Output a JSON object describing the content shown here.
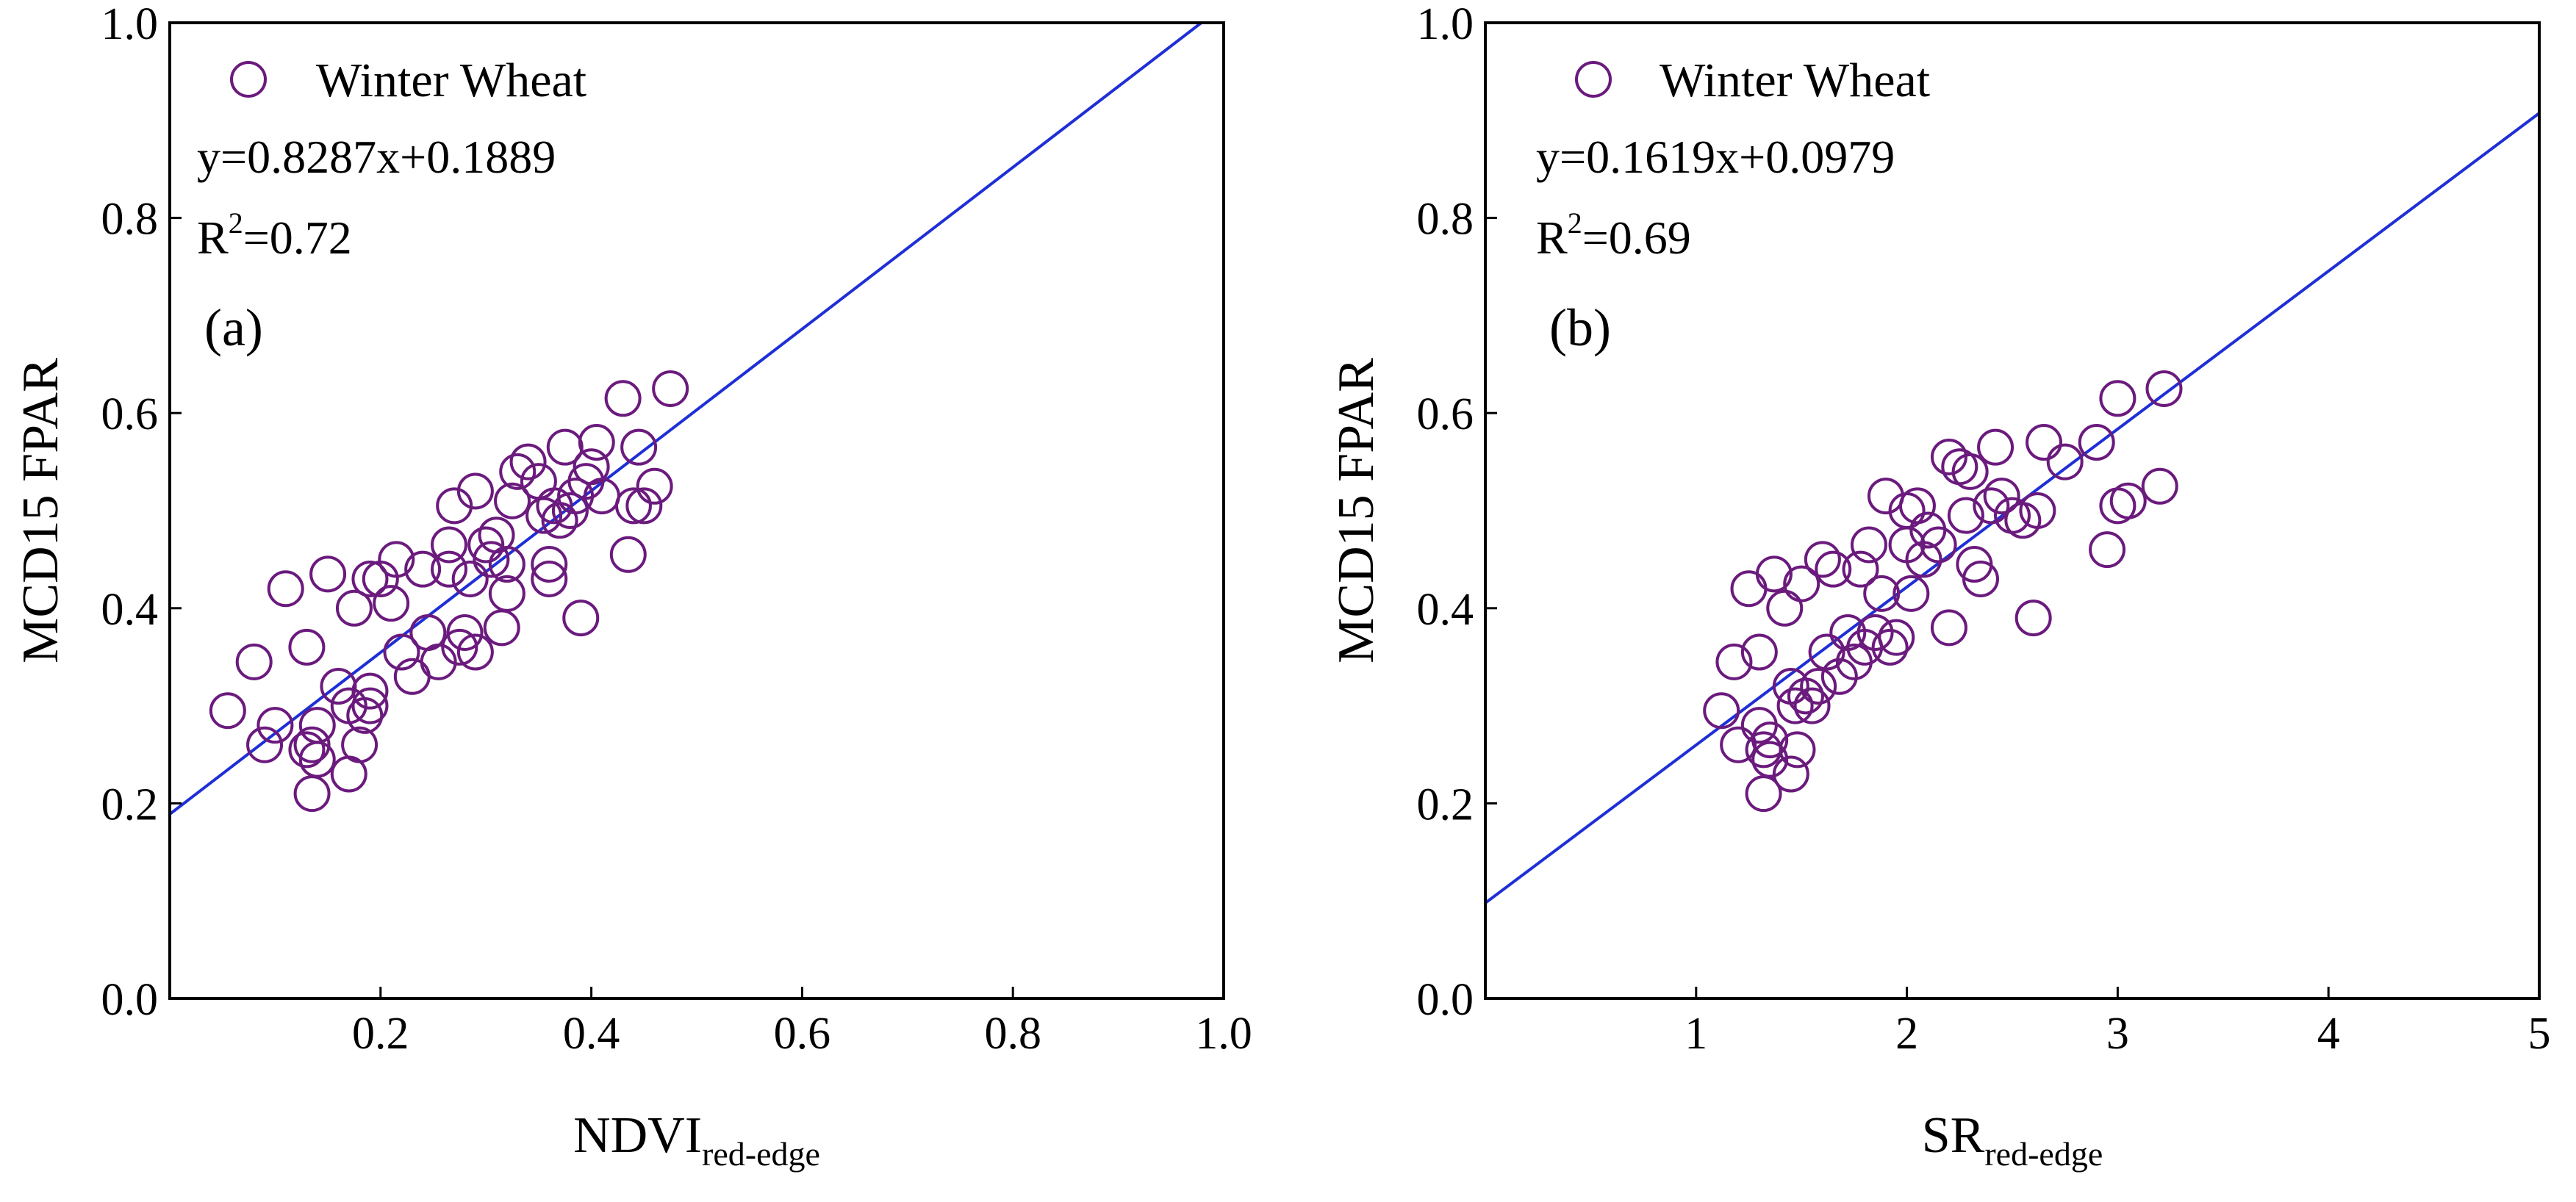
{
  "colors": {
    "series": "#6b1a7d",
    "fit": "#1f2fd6",
    "axis": "#000000"
  },
  "chart_data": [
    {
      "type": "scatter",
      "panel_label": "(a)",
      "xlabel": "NDVI",
      "xlabel_sub": "red-edge",
      "ylabel": "MCD15 FPAR",
      "xlim": [
        0,
        1.0
      ],
      "ylim": [
        0,
        1.0
      ],
      "xticks": [
        0.2,
        0.4,
        0.6,
        0.8,
        1.0
      ],
      "xtick_labels": [
        "0.2",
        "0.4",
        "0.6",
        "0.8",
        "1.0"
      ],
      "yticks": [
        0.0,
        0.2,
        0.4,
        0.6,
        0.8,
        1.0
      ],
      "ytick_labels": [
        "0.0",
        "0.2",
        "0.4",
        "0.6",
        "0.8",
        "1.0"
      ],
      "legend": "Winter Wheat",
      "equation": "y=0.8287x+0.1889",
      "r2_base": "R",
      "r2_sup": "2",
      "r2_value": "=0.72",
      "fit": {
        "slope": 0.8287,
        "intercept": 0.1889,
        "x_range": [
          0,
          0.985
        ]
      },
      "series": [
        {
          "name": "Winter Wheat",
          "points": [
            [
              0.055,
              0.295
            ],
            [
              0.08,
              0.345
            ],
            [
              0.09,
              0.26
            ],
            [
              0.1,
              0.28
            ],
            [
              0.11,
              0.42
            ],
            [
              0.13,
              0.36
            ],
            [
              0.13,
              0.255
            ],
            [
              0.135,
              0.21
            ],
            [
              0.135,
              0.26
            ],
            [
              0.14,
              0.245
            ],
            [
              0.14,
              0.28
            ],
            [
              0.15,
              0.435
            ],
            [
              0.16,
              0.32
            ],
            [
              0.17,
              0.23
            ],
            [
              0.17,
              0.3
            ],
            [
              0.175,
              0.4
            ],
            [
              0.18,
              0.26
            ],
            [
              0.185,
              0.29
            ],
            [
              0.19,
              0.3
            ],
            [
              0.19,
              0.315
            ],
            [
              0.19,
              0.43
            ],
            [
              0.2,
              0.43
            ],
            [
              0.21,
              0.405
            ],
            [
              0.215,
              0.45
            ],
            [
              0.22,
              0.355
            ],
            [
              0.23,
              0.33
            ],
            [
              0.24,
              0.44
            ],
            [
              0.245,
              0.375
            ],
            [
              0.255,
              0.345
            ],
            [
              0.265,
              0.465
            ],
            [
              0.265,
              0.44
            ],
            [
              0.27,
              0.505
            ],
            [
              0.275,
              0.36
            ],
            [
              0.28,
              0.375
            ],
            [
              0.285,
              0.43
            ],
            [
              0.29,
              0.355
            ],
            [
              0.29,
              0.52
            ],
            [
              0.3,
              0.465
            ],
            [
              0.305,
              0.45
            ],
            [
              0.31,
              0.475
            ],
            [
              0.315,
              0.38
            ],
            [
              0.32,
              0.415
            ],
            [
              0.32,
              0.445
            ],
            [
              0.325,
              0.51
            ],
            [
              0.33,
              0.54
            ],
            [
              0.34,
              0.55
            ],
            [
              0.35,
              0.53
            ],
            [
              0.355,
              0.495
            ],
            [
              0.36,
              0.43
            ],
            [
              0.36,
              0.445
            ],
            [
              0.365,
              0.505
            ],
            [
              0.37,
              0.49
            ],
            [
              0.375,
              0.565
            ],
            [
              0.38,
              0.5
            ],
            [
              0.385,
              0.515
            ],
            [
              0.39,
              0.39
            ],
            [
              0.395,
              0.53
            ],
            [
              0.4,
              0.545
            ],
            [
              0.405,
              0.57
            ],
            [
              0.41,
              0.515
            ],
            [
              0.43,
              0.615
            ],
            [
              0.435,
              0.455
            ],
            [
              0.44,
              0.505
            ],
            [
              0.445,
              0.565
            ],
            [
              0.45,
              0.505
            ],
            [
              0.46,
              0.525
            ],
            [
              0.475,
              0.625
            ]
          ]
        }
      ]
    },
    {
      "type": "scatter",
      "panel_label": "(b)",
      "xlabel": "SR",
      "xlabel_sub": "red-edge",
      "ylabel": "MCD15 FPAR",
      "xlim": [
        0,
        5
      ],
      "ylim": [
        0,
        1.0
      ],
      "xticks": [
        1,
        2,
        3,
        4,
        5
      ],
      "xtick_labels": [
        "1",
        "2",
        "3",
        "4",
        "5"
      ],
      "yticks": [
        0.0,
        0.2,
        0.4,
        0.6,
        0.8,
        1.0
      ],
      "ytick_labels": [
        "0.0",
        "0.2",
        "0.4",
        "0.6",
        "0.8",
        "1.0"
      ],
      "legend": "Winter Wheat",
      "equation": "y=0.1619x+0.0979",
      "r2_base": "R",
      "r2_sup": "2",
      "r2_value": "=0.69",
      "fit": {
        "slope": 0.1619,
        "intercept": 0.0979,
        "x_range": [
          0,
          5
        ]
      },
      "series": [
        {
          "name": "Winter Wheat",
          "points": [
            [
              1.12,
              0.295
            ],
            [
              1.18,
              0.345
            ],
            [
              1.2,
              0.26
            ],
            [
              1.25,
              0.42
            ],
            [
              1.3,
              0.28
            ],
            [
              1.3,
              0.355
            ],
            [
              1.32,
              0.21
            ],
            [
              1.32,
              0.255
            ],
            [
              1.35,
              0.245
            ],
            [
              1.35,
              0.265
            ],
            [
              1.37,
              0.435
            ],
            [
              1.42,
              0.4
            ],
            [
              1.45,
              0.32
            ],
            [
              1.45,
              0.23
            ],
            [
              1.47,
              0.3
            ],
            [
              1.48,
              0.255
            ],
            [
              1.5,
              0.425
            ],
            [
              1.52,
              0.31
            ],
            [
              1.55,
              0.3
            ],
            [
              1.58,
              0.32
            ],
            [
              1.6,
              0.45
            ],
            [
              1.62,
              0.355
            ],
            [
              1.65,
              0.44
            ],
            [
              1.68,
              0.33
            ],
            [
              1.72,
              0.375
            ],
            [
              1.75,
              0.345
            ],
            [
              1.78,
              0.44
            ],
            [
              1.8,
              0.36
            ],
            [
              1.82,
              0.465
            ],
            [
              1.85,
              0.375
            ],
            [
              1.88,
              0.415
            ],
            [
              1.9,
              0.515
            ],
            [
              1.92,
              0.36
            ],
            [
              1.95,
              0.37
            ],
            [
              2.0,
              0.5
            ],
            [
              2.0,
              0.465
            ],
            [
              2.02,
              0.415
            ],
            [
              2.05,
              0.505
            ],
            [
              2.08,
              0.45
            ],
            [
              2.1,
              0.48
            ],
            [
              2.15,
              0.465
            ],
            [
              2.2,
              0.38
            ],
            [
              2.2,
              0.555
            ],
            [
              2.25,
              0.545
            ],
            [
              2.28,
              0.495
            ],
            [
              2.3,
              0.54
            ],
            [
              2.32,
              0.445
            ],
            [
              2.35,
              0.43
            ],
            [
              2.4,
              0.505
            ],
            [
              2.42,
              0.565
            ],
            [
              2.45,
              0.515
            ],
            [
              2.5,
              0.495
            ],
            [
              2.55,
              0.49
            ],
            [
              2.6,
              0.39
            ],
            [
              2.62,
              0.5
            ],
            [
              2.65,
              0.57
            ],
            [
              2.75,
              0.55
            ],
            [
              2.9,
              0.57
            ],
            [
              2.95,
              0.46
            ],
            [
              3.0,
              0.505
            ],
            [
              3.0,
              0.615
            ],
            [
              3.05,
              0.51
            ],
            [
              3.2,
              0.525
            ],
            [
              3.22,
              0.625
            ]
          ]
        }
      ]
    }
  ]
}
